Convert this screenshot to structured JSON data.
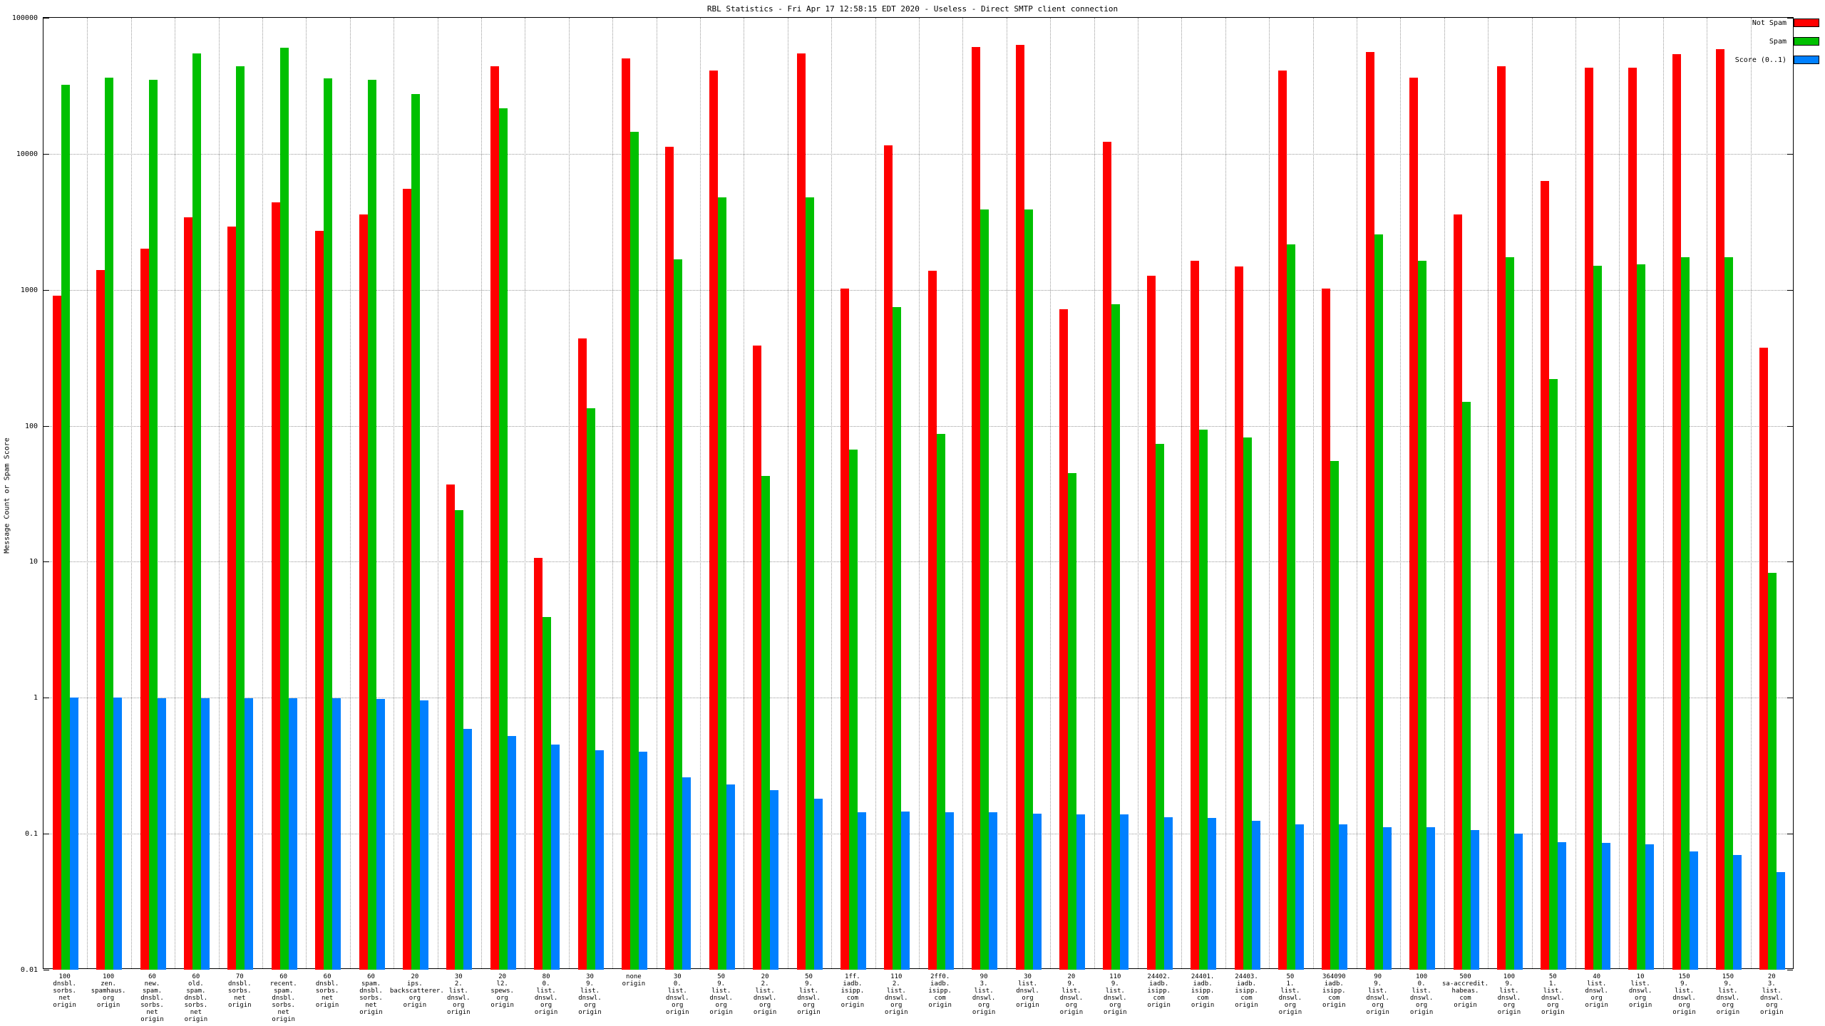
{
  "title": "RBL Statistics - Fri Apr 17 12:58:15 EDT 2020 - Useless - Direct SMTP client connection",
  "ylabel": "Message Count or Spam Score",
  "legend": [
    {
      "label": "Not Spam",
      "color": "#ff0000"
    },
    {
      "label": "Spam",
      "color": "#00c000"
    },
    {
      "label": "Score (0..1)",
      "color": "#0080ff"
    }
  ],
  "chart_data": {
    "type": "bar",
    "scale": "log",
    "ylim": [
      0.01,
      100000
    ],
    "grid": true,
    "legend_position": "outside-top-right",
    "ytick_labels": [
      "100000",
      "10000",
      "1000",
      "100",
      "10",
      "1",
      "0.1",
      "0.01"
    ],
    "categories": [
      [
        "100",
        "dnsbl.",
        "sorbs.",
        "net",
        "origin"
      ],
      [
        "100",
        "zen.",
        "spamhaus.",
        "org",
        "origin"
      ],
      [
        "60",
        "new.",
        "spam.",
        "dnsbl.",
        "sorbs.",
        "net",
        "origin"
      ],
      [
        "60",
        "old.",
        "spam.",
        "dnsbl.",
        "sorbs.",
        "net",
        "origin"
      ],
      [
        "70",
        "dnsbl.",
        "sorbs.",
        "net",
        "origin"
      ],
      [
        "60",
        "recent.",
        "spam.",
        "dnsbl.",
        "sorbs.",
        "net",
        "origin"
      ],
      [
        "60",
        "dnsbl.",
        "sorbs.",
        "net",
        "origin"
      ],
      [
        "60",
        "spam.",
        "dnsbl.",
        "sorbs.",
        "net",
        "origin"
      ],
      [
        "20",
        "ips.",
        "backscatterer.",
        "org",
        "origin"
      ],
      [
        "30",
        "2.",
        "list.",
        "dnswl.",
        "org",
        "origin"
      ],
      [
        "20",
        "l2.",
        "spews.",
        "org",
        "origin"
      ],
      [
        "80",
        "0.",
        "list.",
        "dnswl.",
        "org",
        "origin"
      ],
      [
        "30",
        "9.",
        "list.",
        "dnswl.",
        "org",
        "origin"
      ],
      [
        "none",
        "origin"
      ],
      [
        "30",
        "0.",
        "list.",
        "dnswl.",
        "org",
        "origin"
      ],
      [
        "50",
        "9.",
        "list.",
        "dnswl.",
        "org",
        "origin"
      ],
      [
        "20",
        "2.",
        "list.",
        "dnswl.",
        "org",
        "origin"
      ],
      [
        "50",
        "9.",
        "list.",
        "dnswl.",
        "org",
        "origin"
      ],
      [
        "1ff.",
        "iadb.",
        "isipp.",
        "com",
        "origin"
      ],
      [
        "110",
        "2.",
        "list.",
        "dnswl.",
        "org",
        "origin"
      ],
      [
        "2ff0.",
        "iadb.",
        "isipp.",
        "com",
        "origin"
      ],
      [
        "90",
        "3.",
        "list.",
        "dnswl.",
        "org",
        "origin"
      ],
      [
        "30",
        "list.",
        "dnswl.",
        "org",
        "origin"
      ],
      [
        "20",
        "9.",
        "list.",
        "dnswl.",
        "org",
        "origin"
      ],
      [
        "110",
        "9.",
        "list.",
        "dnswl.",
        "org",
        "origin"
      ],
      [
        "24402.",
        "iadb.",
        "isipp.",
        "com",
        "origin"
      ],
      [
        "24401.",
        "iadb.",
        "isipp.",
        "com",
        "origin"
      ],
      [
        "24403.",
        "iadb.",
        "isipp.",
        "com",
        "origin"
      ],
      [
        "50",
        "1.",
        "list.",
        "dnswl.",
        "org",
        "origin"
      ],
      [
        "364090",
        "iadb.",
        "isipp.",
        "com",
        "origin"
      ],
      [
        "90",
        "9.",
        "list.",
        "dnswl.",
        "org",
        "origin"
      ],
      [
        "100",
        "0.",
        "list.",
        "dnswl.",
        "org",
        "origin"
      ],
      [
        "500",
        "sa-accredit.",
        "habeas.",
        "com",
        "origin"
      ],
      [
        "100",
        "9.",
        "list.",
        "dnswl.",
        "org",
        "origin"
      ],
      [
        "50",
        "1.",
        "list.",
        "dnswl.",
        "org",
        "origin"
      ],
      [
        "40",
        "list.",
        "dnswl.",
        "org",
        "origin"
      ],
      [
        "10",
        "list.",
        "dnswl.",
        "org",
        "origin"
      ],
      [
        "150",
        "9.",
        "list.",
        "dnswl.",
        "org",
        "origin"
      ],
      [
        "150",
        "9.",
        "list.",
        "dnswl.",
        "org",
        "origin"
      ],
      [
        "20",
        "3.",
        "list.",
        "dnswl.",
        "org",
        "origin"
      ]
    ],
    "series": [
      {
        "name": "Not Spam",
        "color": "#ff0000",
        "values": [
          900,
          1400,
          2000,
          3400,
          2900,
          4400,
          2700,
          3600,
          5500,
          37,
          44000,
          10.7,
          440,
          50000,
          11300,
          41000,
          390,
          55000,
          1020,
          11500,
          1380,
          61000,
          63000,
          720,
          12300,
          1270,
          1640,
          1480,
          41000,
          1020,
          56000,
          36500,
          3570,
          44000,
          6300,
          43000,
          43000,
          54000,
          59000,
          375
        ]
      },
      {
        "name": "Spam",
        "color": "#00c000",
        "values": [
          32000,
          36500,
          35000,
          55000,
          44000,
          60000,
          36000,
          35000,
          27500,
          24,
          21500,
          3.9,
          135,
          14500,
          1670,
          4800,
          43,
          4800,
          67,
          745,
          87,
          3900,
          3900,
          45,
          780,
          74,
          94,
          82,
          2150,
          55,
          2560,
          1630,
          150,
          1730,
          220,
          1510,
          1540,
          1730,
          1730,
          8.3
        ]
      },
      {
        "name": "Score (0..1)",
        "color": "#0080ff",
        "values": [
          1.0,
          1.0,
          0.99,
          0.99,
          0.99,
          0.99,
          0.99,
          0.98,
          0.96,
          0.59,
          0.52,
          0.45,
          0.41,
          0.4,
          0.26,
          0.23,
          0.21,
          0.18,
          0.144,
          0.146,
          0.144,
          0.144,
          0.141,
          0.139,
          0.139,
          0.133,
          0.131,
          0.125,
          0.117,
          0.117,
          0.112,
          0.112,
          0.107,
          0.1,
          0.087,
          0.086,
          0.084,
          0.074,
          0.07,
          0.052
        ]
      }
    ]
  }
}
